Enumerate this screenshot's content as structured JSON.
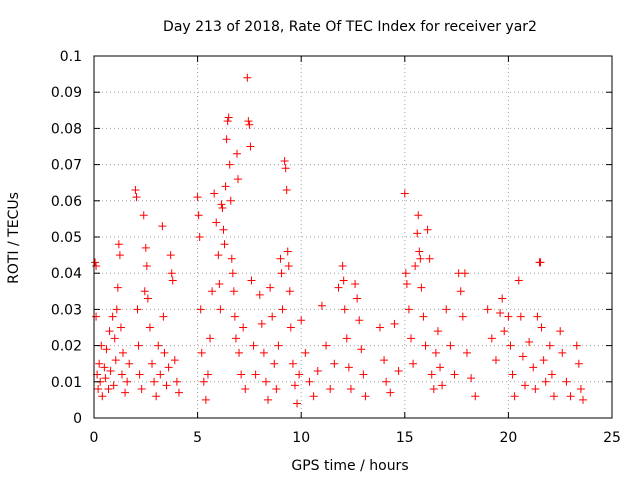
{
  "chart_data": {
    "type": "scatter",
    "title": "Day 213 of 2018, Rate Of TEC Index for receiver yar2",
    "xlabel": "GPS time / hours",
    "ylabel": "ROTI / TECUs",
    "xlim": [
      0,
      25
    ],
    "ylim": [
      0,
      0.1
    ],
    "x_ticks": [
      "0",
      "5",
      "10",
      "15",
      "20",
      "25"
    ],
    "y_ticks": [
      "0",
      "0.01",
      "0.02",
      "0.03",
      "0.04",
      "0.05",
      "0.06",
      "0.07",
      "0.08",
      "0.09",
      "0.1"
    ],
    "grid": true,
    "marker": "plus",
    "color": "#ff0000",
    "series": [
      {
        "name": "ROTI",
        "points": [
          [
            0.05,
            0.043
          ],
          [
            0.1,
            0.042
          ],
          [
            0.1,
            0.028
          ],
          [
            0.15,
            0.012
          ],
          [
            0.2,
            0.008
          ],
          [
            0.25,
            0.015
          ],
          [
            0.3,
            0.01
          ],
          [
            0.35,
            0.02
          ],
          [
            0.4,
            0.006
          ],
          [
            0.5,
            0.014
          ],
          [
            0.55,
            0.011
          ],
          [
            0.6,
            0.019
          ],
          [
            0.7,
            0.008
          ],
          [
            0.75,
            0.024
          ],
          [
            0.8,
            0.013
          ],
          [
            0.9,
            0.028
          ],
          [
            0.95,
            0.009
          ],
          [
            1.0,
            0.022
          ],
          [
            1.05,
            0.016
          ],
          [
            1.1,
            0.03
          ],
          [
            1.15,
            0.036
          ],
          [
            1.2,
            0.048
          ],
          [
            1.25,
            0.045
          ],
          [
            1.3,
            0.025
          ],
          [
            1.35,
            0.012
          ],
          [
            1.4,
            0.018
          ],
          [
            1.5,
            0.007
          ],
          [
            1.6,
            0.01
          ],
          [
            1.7,
            0.015
          ],
          [
            2.0,
            0.063
          ],
          [
            2.05,
            0.061
          ],
          [
            2.1,
            0.03
          ],
          [
            2.15,
            0.02
          ],
          [
            2.2,
            0.012
          ],
          [
            2.3,
            0.008
          ],
          [
            2.4,
            0.056
          ],
          [
            2.45,
            0.035
          ],
          [
            2.5,
            0.047
          ],
          [
            2.55,
            0.042
          ],
          [
            2.6,
            0.033
          ],
          [
            2.7,
            0.025
          ],
          [
            2.8,
            0.015
          ],
          [
            2.9,
            0.01
          ],
          [
            3.0,
            0.006
          ],
          [
            3.1,
            0.02
          ],
          [
            3.2,
            0.012
          ],
          [
            3.3,
            0.053
          ],
          [
            3.35,
            0.028
          ],
          [
            3.4,
            0.018
          ],
          [
            3.5,
            0.009
          ],
          [
            3.6,
            0.014
          ],
          [
            3.7,
            0.045
          ],
          [
            3.75,
            0.04
          ],
          [
            3.8,
            0.038
          ],
          [
            3.9,
            0.016
          ],
          [
            4.0,
            0.01
          ],
          [
            4.1,
            0.007
          ],
          [
            5.0,
            0.061
          ],
          [
            5.05,
            0.056
          ],
          [
            5.1,
            0.05
          ],
          [
            5.15,
            0.03
          ],
          [
            5.2,
            0.018
          ],
          [
            5.3,
            0.01
          ],
          [
            5.4,
            0.005
          ],
          [
            5.5,
            0.012
          ],
          [
            5.6,
            0.022
          ],
          [
            5.7,
            0.035
          ],
          [
            5.8,
            0.062
          ],
          [
            5.9,
            0.054
          ],
          [
            6.0,
            0.045
          ],
          [
            6.05,
            0.037
          ],
          [
            6.1,
            0.03
          ],
          [
            6.15,
            0.059
          ],
          [
            6.2,
            0.058
          ],
          [
            6.25,
            0.052
          ],
          [
            6.3,
            0.048
          ],
          [
            6.35,
            0.064
          ],
          [
            6.4,
            0.077
          ],
          [
            6.45,
            0.082
          ],
          [
            6.5,
            0.083
          ],
          [
            6.55,
            0.07
          ],
          [
            6.6,
            0.06
          ],
          [
            6.65,
            0.044
          ],
          [
            6.7,
            0.04
          ],
          [
            6.75,
            0.035
          ],
          [
            6.8,
            0.028
          ],
          [
            6.85,
            0.022
          ],
          [
            6.9,
            0.073
          ],
          [
            6.95,
            0.066
          ],
          [
            7.0,
            0.018
          ],
          [
            7.1,
            0.012
          ],
          [
            7.2,
            0.025
          ],
          [
            7.3,
            0.008
          ],
          [
            7.4,
            0.094
          ],
          [
            7.45,
            0.082
          ],
          [
            7.5,
            0.081
          ],
          [
            7.55,
            0.075
          ],
          [
            7.6,
            0.038
          ],
          [
            7.7,
            0.02
          ],
          [
            7.8,
            0.012
          ],
          [
            8.0,
            0.034
          ],
          [
            8.1,
            0.026
          ],
          [
            8.2,
            0.018
          ],
          [
            8.3,
            0.01
          ],
          [
            8.4,
            0.005
          ],
          [
            8.5,
            0.036
          ],
          [
            8.6,
            0.028
          ],
          [
            8.7,
            0.015
          ],
          [
            8.8,
            0.008
          ],
          [
            8.9,
            0.02
          ],
          [
            9.0,
            0.044
          ],
          [
            9.05,
            0.04
          ],
          [
            9.1,
            0.03
          ],
          [
            9.2,
            0.071
          ],
          [
            9.25,
            0.069
          ],
          [
            9.3,
            0.063
          ],
          [
            9.35,
            0.046
          ],
          [
            9.4,
            0.042
          ],
          [
            9.45,
            0.035
          ],
          [
            9.5,
            0.025
          ],
          [
            9.6,
            0.015
          ],
          [
            9.7,
            0.009
          ],
          [
            9.8,
            0.004
          ],
          [
            9.9,
            0.012
          ],
          [
            10.0,
            0.027
          ],
          [
            10.2,
            0.018
          ],
          [
            10.4,
            0.01
          ],
          [
            10.6,
            0.006
          ],
          [
            10.8,
            0.013
          ],
          [
            11.0,
            0.031
          ],
          [
            11.2,
            0.02
          ],
          [
            11.4,
            0.008
          ],
          [
            11.6,
            0.015
          ],
          [
            11.8,
            0.036
          ],
          [
            12.0,
            0.042
          ],
          [
            12.05,
            0.038
          ],
          [
            12.1,
            0.03
          ],
          [
            12.2,
            0.022
          ],
          [
            12.3,
            0.014
          ],
          [
            12.4,
            0.008
          ],
          [
            12.6,
            0.037
          ],
          [
            12.7,
            0.033
          ],
          [
            12.8,
            0.027
          ],
          [
            12.9,
            0.019
          ],
          [
            13.0,
            0.012
          ],
          [
            13.1,
            0.006
          ],
          [
            13.8,
            0.025
          ],
          [
            14.0,
            0.016
          ],
          [
            14.1,
            0.01
          ],
          [
            14.3,
            0.007
          ],
          [
            14.5,
            0.026
          ],
          [
            14.7,
            0.013
          ],
          [
            15.0,
            0.062
          ],
          [
            15.05,
            0.04
          ],
          [
            15.1,
            0.037
          ],
          [
            15.2,
            0.03
          ],
          [
            15.3,
            0.022
          ],
          [
            15.4,
            0.015
          ],
          [
            15.5,
            0.042
          ],
          [
            15.6,
            0.051
          ],
          [
            15.65,
            0.056
          ],
          [
            15.7,
            0.046
          ],
          [
            15.75,
            0.044
          ],
          [
            15.8,
            0.036
          ],
          [
            15.9,
            0.028
          ],
          [
            16.0,
            0.02
          ],
          [
            16.1,
            0.052
          ],
          [
            16.2,
            0.044
          ],
          [
            16.3,
            0.012
          ],
          [
            16.4,
            0.008
          ],
          [
            16.5,
            0.018
          ],
          [
            16.6,
            0.024
          ],
          [
            16.7,
            0.014
          ],
          [
            16.8,
            0.009
          ],
          [
            17.0,
            0.03
          ],
          [
            17.2,
            0.02
          ],
          [
            17.4,
            0.012
          ],
          [
            17.6,
            0.04
          ],
          [
            17.7,
            0.035
          ],
          [
            17.8,
            0.028
          ],
          [
            17.9,
            0.04
          ],
          [
            18.0,
            0.018
          ],
          [
            18.2,
            0.011
          ],
          [
            18.4,
            0.006
          ],
          [
            19.0,
            0.03
          ],
          [
            19.2,
            0.022
          ],
          [
            19.4,
            0.016
          ],
          [
            19.6,
            0.029
          ],
          [
            19.7,
            0.033
          ],
          [
            19.8,
            0.024
          ],
          [
            20.0,
            0.028
          ],
          [
            20.1,
            0.02
          ],
          [
            20.2,
            0.012
          ],
          [
            20.3,
            0.006
          ],
          [
            20.5,
            0.038
          ],
          [
            20.6,
            0.028
          ],
          [
            20.7,
            0.017
          ],
          [
            20.8,
            0.009
          ],
          [
            21.0,
            0.021
          ],
          [
            21.2,
            0.014
          ],
          [
            21.3,
            0.008
          ],
          [
            21.4,
            0.028
          ],
          [
            21.5,
            0.043
          ],
          [
            21.55,
            0.043
          ],
          [
            21.6,
            0.025
          ],
          [
            21.7,
            0.016
          ],
          [
            21.8,
            0.01
          ],
          [
            22.0,
            0.02
          ],
          [
            22.1,
            0.012
          ],
          [
            22.2,
            0.006
          ],
          [
            22.5,
            0.024
          ],
          [
            22.6,
            0.018
          ],
          [
            22.8,
            0.01
          ],
          [
            23.0,
            0.006
          ],
          [
            23.3,
            0.02
          ],
          [
            23.4,
            0.015
          ],
          [
            23.5,
            0.008
          ],
          [
            23.6,
            0.005
          ]
        ]
      }
    ]
  }
}
